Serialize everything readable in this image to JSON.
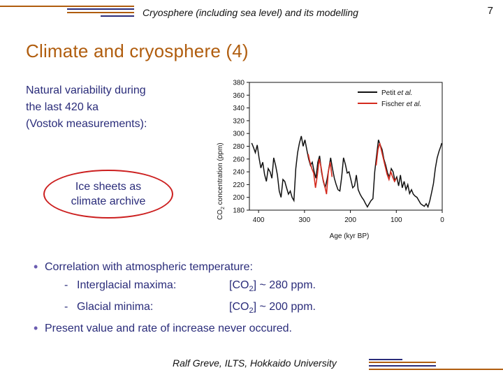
{
  "header": {
    "text": "Cryosphere (including sea level) and its modelling",
    "page_number": "7",
    "accent_color": "#b05d0e"
  },
  "title": "Climate and cryosphere (4)",
  "intro": {
    "line1": "Natural variability during",
    "line2": "the last 420 ka",
    "line3": "(Vostok measurements):"
  },
  "callout": {
    "line1": "Ice sheets as",
    "line2": "climate archive",
    "border_color": "#cc1f1f"
  },
  "bullets": {
    "b1": "Correlation with atmospheric temperature:",
    "sub1_label": "Interglacial maxima:",
    "sub1_value_pre": "[CO",
    "sub1_value_sub": "2",
    "sub1_value_post": "] ~ 280 ppm.",
    "sub2_label": "Glacial minima:",
    "sub2_value_pre": "[CO",
    "sub2_value_sub": "2",
    "sub2_value_post": "] ~ 200 ppm.",
    "dash": "-",
    "b2": "Present value and rate of increase never occured.",
    "text_color": "#2a2c7a"
  },
  "footer": {
    "text": "Ralf Greve, ILTS, Hokkaido University"
  },
  "chart_data": {
    "type": "line",
    "xlabel": "Age (kyr BP)",
    "ylabel_pre": "CO",
    "ylabel_sub": "2",
    "ylabel_post": " concentration (ppm)",
    "xlim": [
      420,
      0
    ],
    "ylim": [
      180,
      380
    ],
    "xticks": [
      400,
      300,
      200,
      100,
      0
    ],
    "yticks": [
      180,
      200,
      220,
      240,
      260,
      280,
      300,
      320,
      340,
      360,
      380
    ],
    "legend_position": "top-right",
    "series": [
      {
        "name_pre": "Petit ",
        "name_italic": "et al.",
        "color": "#111111",
        "x": [
          415,
          411,
          407,
          403,
          399,
          395,
          391,
          387,
          383,
          379,
          375,
          371,
          367,
          363,
          359,
          355,
          351,
          347,
          343,
          339,
          335,
          331,
          327,
          323,
          319,
          315,
          311,
          307,
          303,
          299,
          295,
          291,
          287,
          283,
          279,
          275,
          271,
          267,
          263,
          259,
          255,
          251,
          247,
          243,
          239,
          235,
          231,
          227,
          223,
          219,
          215,
          211,
          207,
          203,
          199,
          195,
          191,
          187,
          183,
          179,
          175,
          171,
          167,
          163,
          159,
          155,
          151,
          147,
          143,
          139,
          135,
          131,
          127,
          123,
          119,
          115,
          111,
          107,
          103,
          99,
          95,
          91,
          87,
          83,
          79,
          75,
          71,
          67,
          63,
          59,
          55,
          51,
          47,
          43,
          39,
          35,
          31,
          27,
          23,
          19,
          15,
          11,
          7,
          3,
          1
        ],
        "values": [
          285,
          278,
          270,
          282,
          262,
          246,
          255,
          236,
          225,
          245,
          240,
          230,
          262,
          250,
          235,
          210,
          200,
          228,
          225,
          215,
          205,
          210,
          200,
          195,
          245,
          270,
          285,
          296,
          280,
          290,
          275,
          260,
          250,
          255,
          240,
          230,
          255,
          265,
          240,
          225,
          215,
          228,
          245,
          262,
          245,
          230,
          220,
          212,
          210,
          232,
          262,
          252,
          238,
          240,
          228,
          215,
          218,
          235,
          212,
          205,
          200,
          196,
          190,
          185,
          190,
          195,
          198,
          240,
          265,
          290,
          282,
          275,
          260,
          250,
          238,
          232,
          245,
          240,
          226,
          232,
          218,
          235,
          215,
          225,
          212,
          220,
          206,
          212,
          205,
          202,
          200,
          195,
          190,
          188,
          186,
          190,
          185,
          195,
          208,
          222,
          245,
          262,
          272,
          280,
          285
        ]
      },
      {
        "name_pre": "Fischer ",
        "name_italic": "et al.",
        "color": "#d42a1e",
        "x": [
          292,
          288,
          284,
          280,
          276,
          272,
          268,
          264,
          260,
          256,
          252,
          248,
          244,
          240,
          144,
          140,
          136,
          132,
          128,
          124,
          120,
          116,
          112,
          108,
          104,
          100
        ],
        "values": [
          268,
          255,
          245,
          238,
          215,
          235,
          260,
          248,
          230,
          218,
          205,
          240,
          255,
          232,
          250,
          275,
          285,
          272,
          260,
          248,
          236,
          228,
          240,
          232,
          225,
          230
        ]
      }
    ]
  }
}
